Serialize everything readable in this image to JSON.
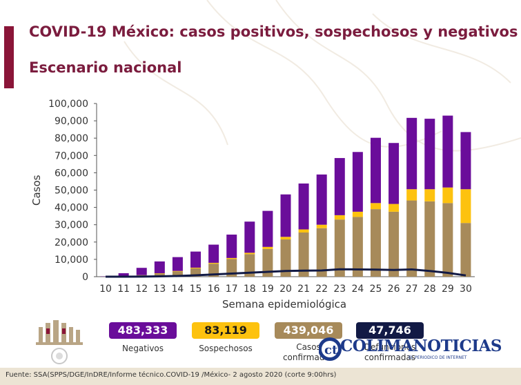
{
  "title": "COVID-19 México: casos positivos, sospechosos y negativos",
  "subtitle": "Escenario nacional",
  "colors": {
    "negativos": "#6a0d9a",
    "sospechosos": "#fdc20f",
    "confirmados": "#a78a5a",
    "defunciones": "#121a45",
    "title": "#7b1c3e",
    "accent": "#8a1538"
  },
  "chart_data": {
    "type": "bar",
    "stacked": true,
    "xlabel": "Semana epidemiológica",
    "ylabel": "Casos",
    "ylim": [
      0,
      100000
    ],
    "yticks": [
      0,
      10000,
      20000,
      30000,
      40000,
      50000,
      60000,
      70000,
      80000,
      90000,
      100000
    ],
    "ytick_labels": [
      "0",
      "10,000",
      "20,000",
      "30,000",
      "40,000",
      "50,000",
      "60,000",
      "70,000",
      "80,000",
      "90,000",
      "100,000"
    ],
    "categories": [
      "10",
      "11",
      "12",
      "13",
      "14",
      "15",
      "16",
      "17",
      "18",
      "19",
      "20",
      "21",
      "22",
      "23",
      "24",
      "25",
      "26",
      "27",
      "28",
      "29",
      "30"
    ],
    "series": [
      {
        "name": "Confirmados",
        "values": [
          50,
          150,
          800,
          1800,
          3000,
          4800,
          7500,
          10200,
          13000,
          16000,
          21500,
          25500,
          28000,
          33000,
          34500,
          39000,
          37500,
          44000,
          43500,
          42500,
          31000
        ]
      },
      {
        "name": "Sospechosos",
        "values": [
          10,
          50,
          100,
          200,
          300,
          400,
          500,
          600,
          800,
          1200,
          1500,
          1800,
          2000,
          2500,
          3000,
          3500,
          4500,
          6500,
          7000,
          9000,
          19500
        ]
      },
      {
        "name": "Negativos",
        "values": [
          150,
          1800,
          4200,
          6800,
          8000,
          9300,
          10500,
          13500,
          18000,
          20800,
          24500,
          26500,
          29000,
          33000,
          34500,
          37700,
          35200,
          41200,
          40700,
          41500,
          33000
        ]
      },
      {
        "name": "Defunciones",
        "type": "line",
        "values": [
          0,
          0,
          50,
          200,
          400,
          800,
          1300,
          1800,
          2300,
          2800,
          3300,
          3500,
          3600,
          4300,
          4200,
          4100,
          3900,
          4200,
          3300,
          2200,
          700
        ]
      }
    ]
  },
  "totals": [
    {
      "value": "483,333",
      "label": "Negativos"
    },
    {
      "value": "83,119",
      "label": "Sospechosos"
    },
    {
      "value": "439,046",
      "label": "Casos\nconfirmados"
    },
    {
      "value": "47,746",
      "label": "Defunciones\nconfirmadas"
    }
  ],
  "logo": {
    "text": "COLIMANOTICIAS",
    "tagline": "EL PERIODICO DE INTERNET"
  },
  "source": "Fuente: SSA(SPPS/DGE/InDRE/Informe técnico.COVID-19 /México- 2 agosto 2020 (corte 9:00hrs)"
}
